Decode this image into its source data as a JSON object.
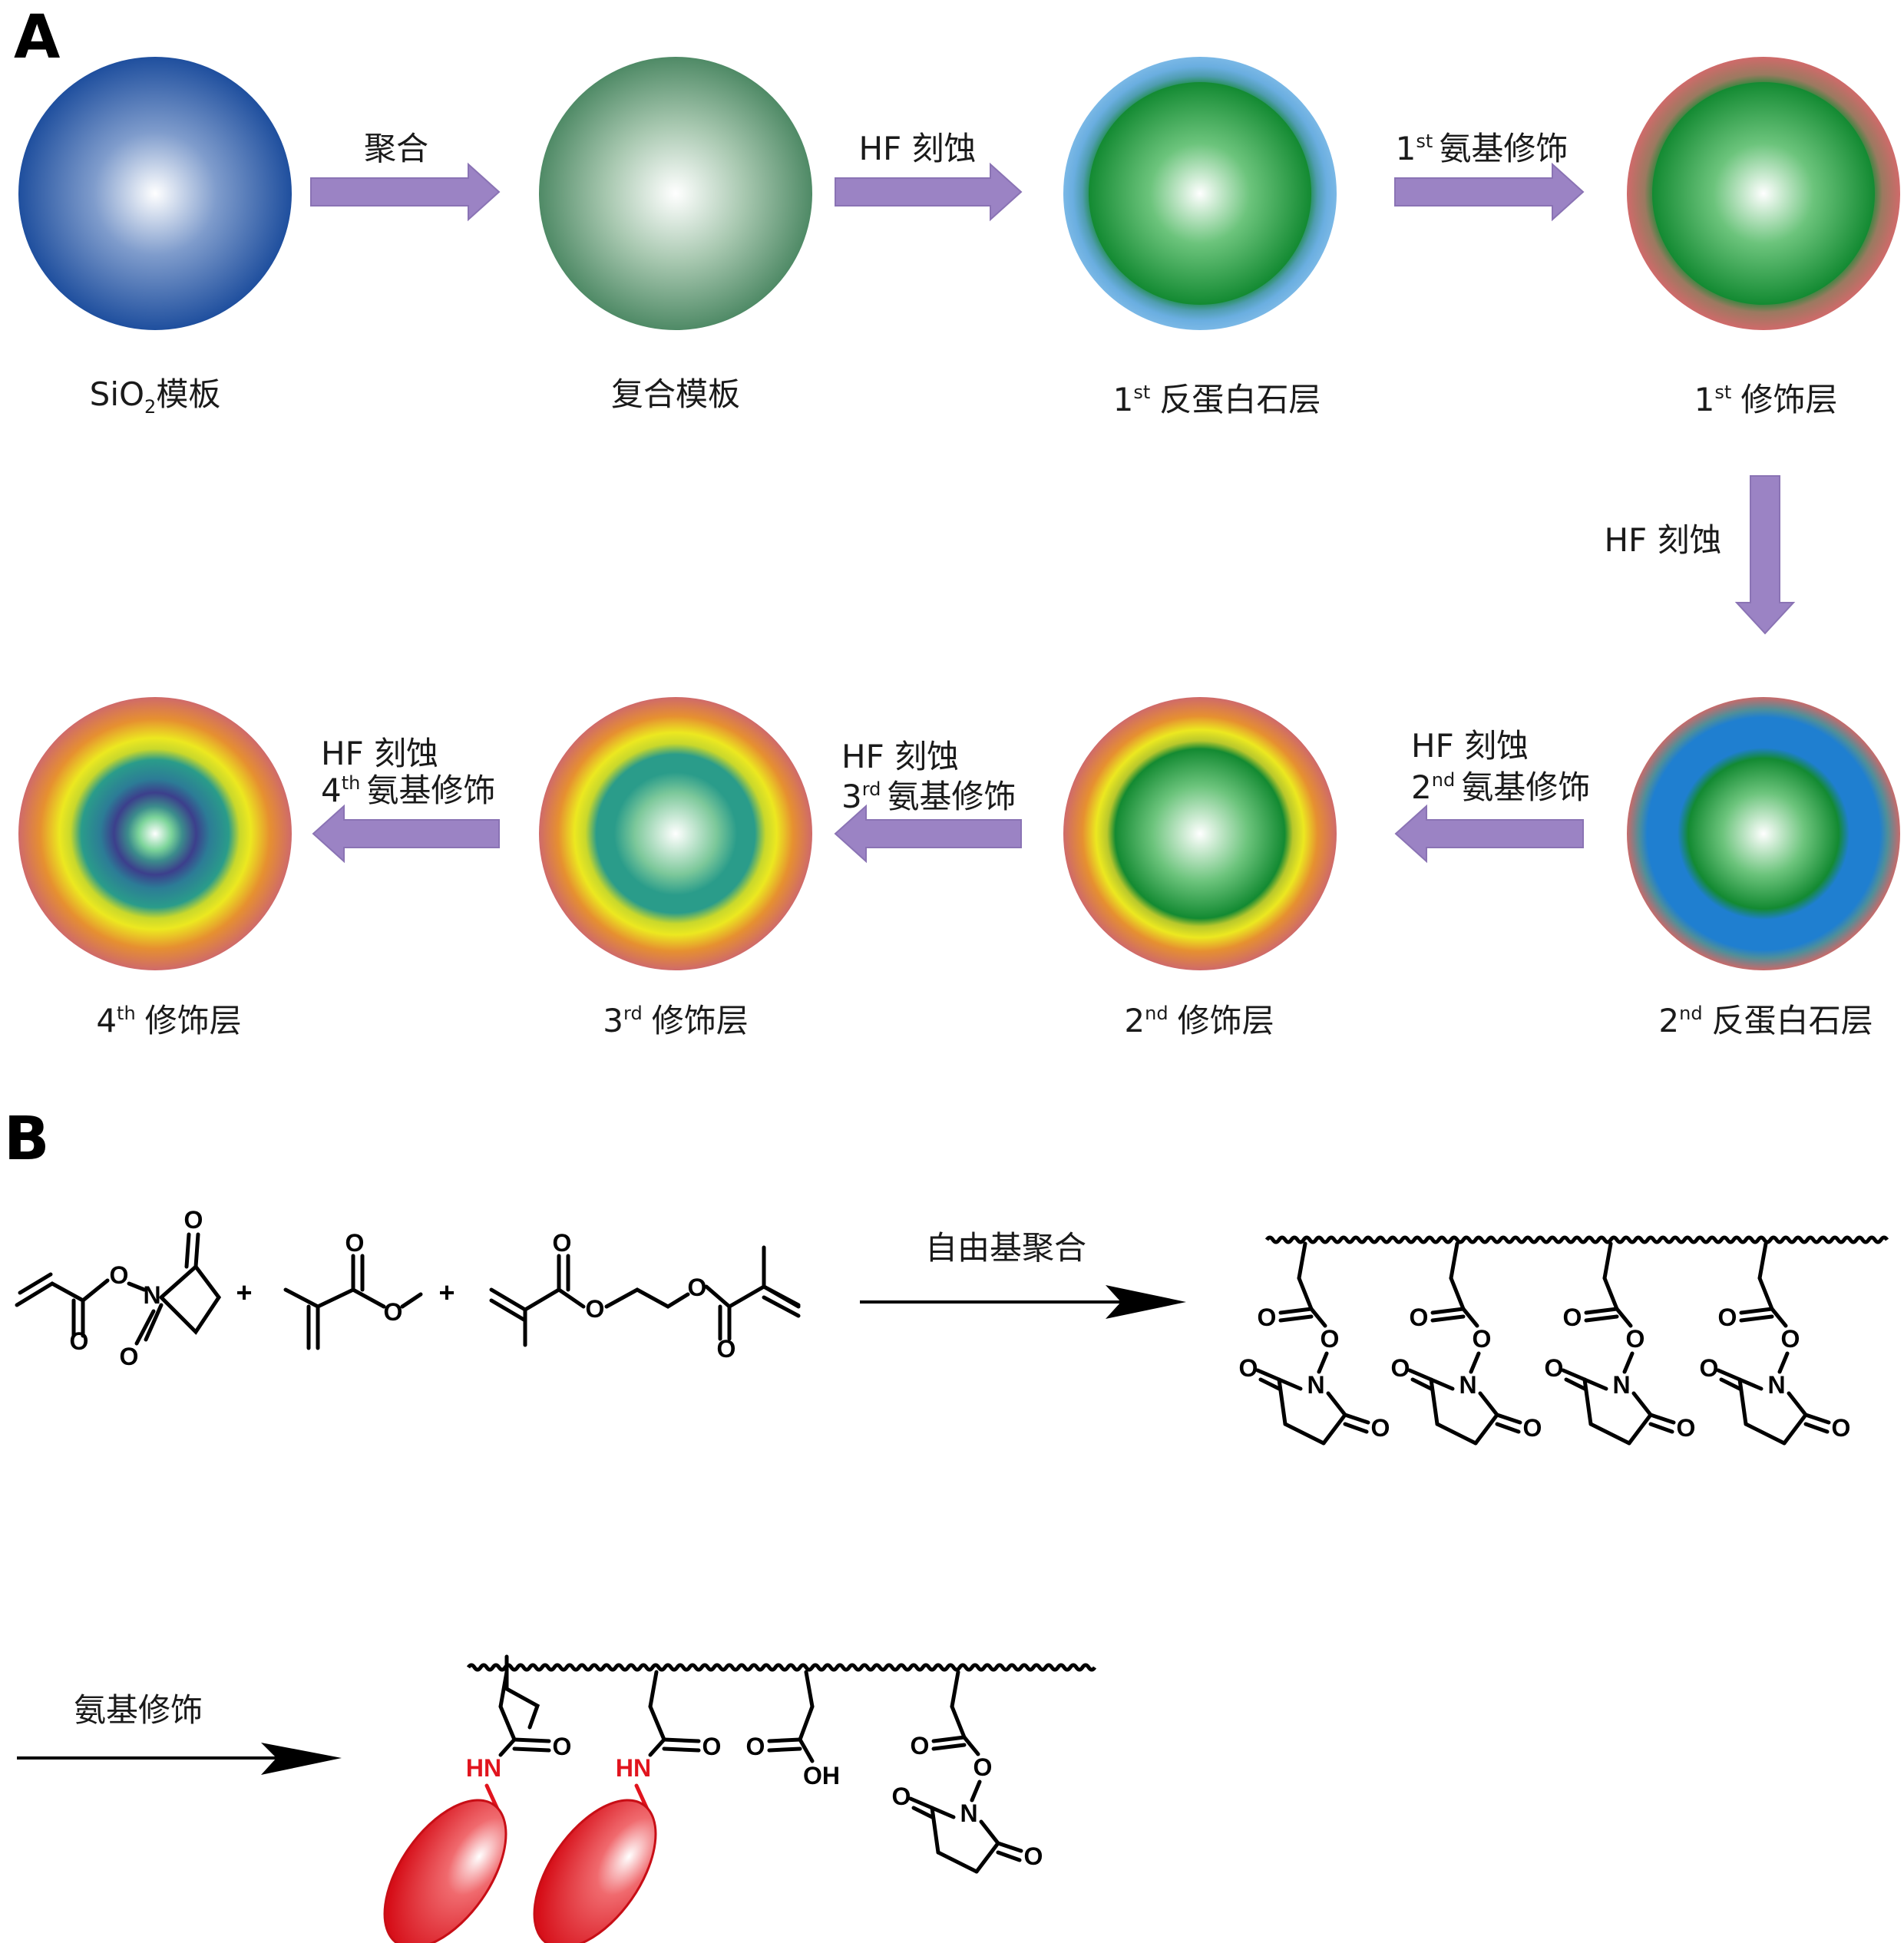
{
  "panels": {
    "a": "A",
    "b": "B"
  },
  "row1": {
    "arrows": [
      "聚合",
      "HF 刻蚀",
      {
        "sup": "st",
        "pre": "1",
        "text": "氨基修饰"
      }
    ],
    "spheres": [
      {
        "label": "SiO",
        "sub": "2",
        "post": "模板"
      },
      {
        "label": "复合模板"
      },
      {
        "pre": "1",
        "sup": "st",
        "label": "反蛋白石层"
      },
      {
        "pre": "1",
        "sup": "st",
        "label": "修饰层"
      }
    ]
  },
  "down_arrow": "HF 刻蚀",
  "row2": {
    "spheres": [
      {
        "pre": "4",
        "sup": "th",
        "label": "修饰层"
      },
      {
        "pre": "3",
        "sup": "rd",
        "label": "修饰层"
      },
      {
        "pre": "2",
        "sup": "nd",
        "label": "修饰层"
      },
      {
        "pre": "2",
        "sup": "nd",
        "label": "反蛋白石层"
      }
    ],
    "arrows": [
      {
        "line1": "HF 刻蚀",
        "pre": "4",
        "sup": "th",
        "line2": "氨基修饰"
      },
      {
        "line1": "HF 刻蚀",
        "pre": "3",
        "sup": "rd",
        "line2": "氨基修饰"
      },
      {
        "line1": "HF 刻蚀",
        "pre": "2",
        "sup": "nd",
        "line2": "氨基修饰"
      }
    ]
  },
  "panel_b": {
    "plus": "+",
    "reaction1": "自由基聚合",
    "reaction2": "氨基修饰",
    "atoms": {
      "O": "O",
      "N": "N",
      "HN": "HN",
      "OH": "OH"
    }
  },
  "colors": {
    "arrow_fill": "#9b83c4",
    "sio2": "#1f4f9e",
    "composite": "#4f8a66",
    "green_core": "#138a32",
    "opal_shell": "#6aaee0",
    "mod_shell": "#c86a6a",
    "blue_layer": "#1f7fd0",
    "yellow_ring": "#e8e020",
    "teal_ring": "#2a9c8a",
    "purple_core": "#3c3f8c",
    "protein": "#e01820"
  }
}
